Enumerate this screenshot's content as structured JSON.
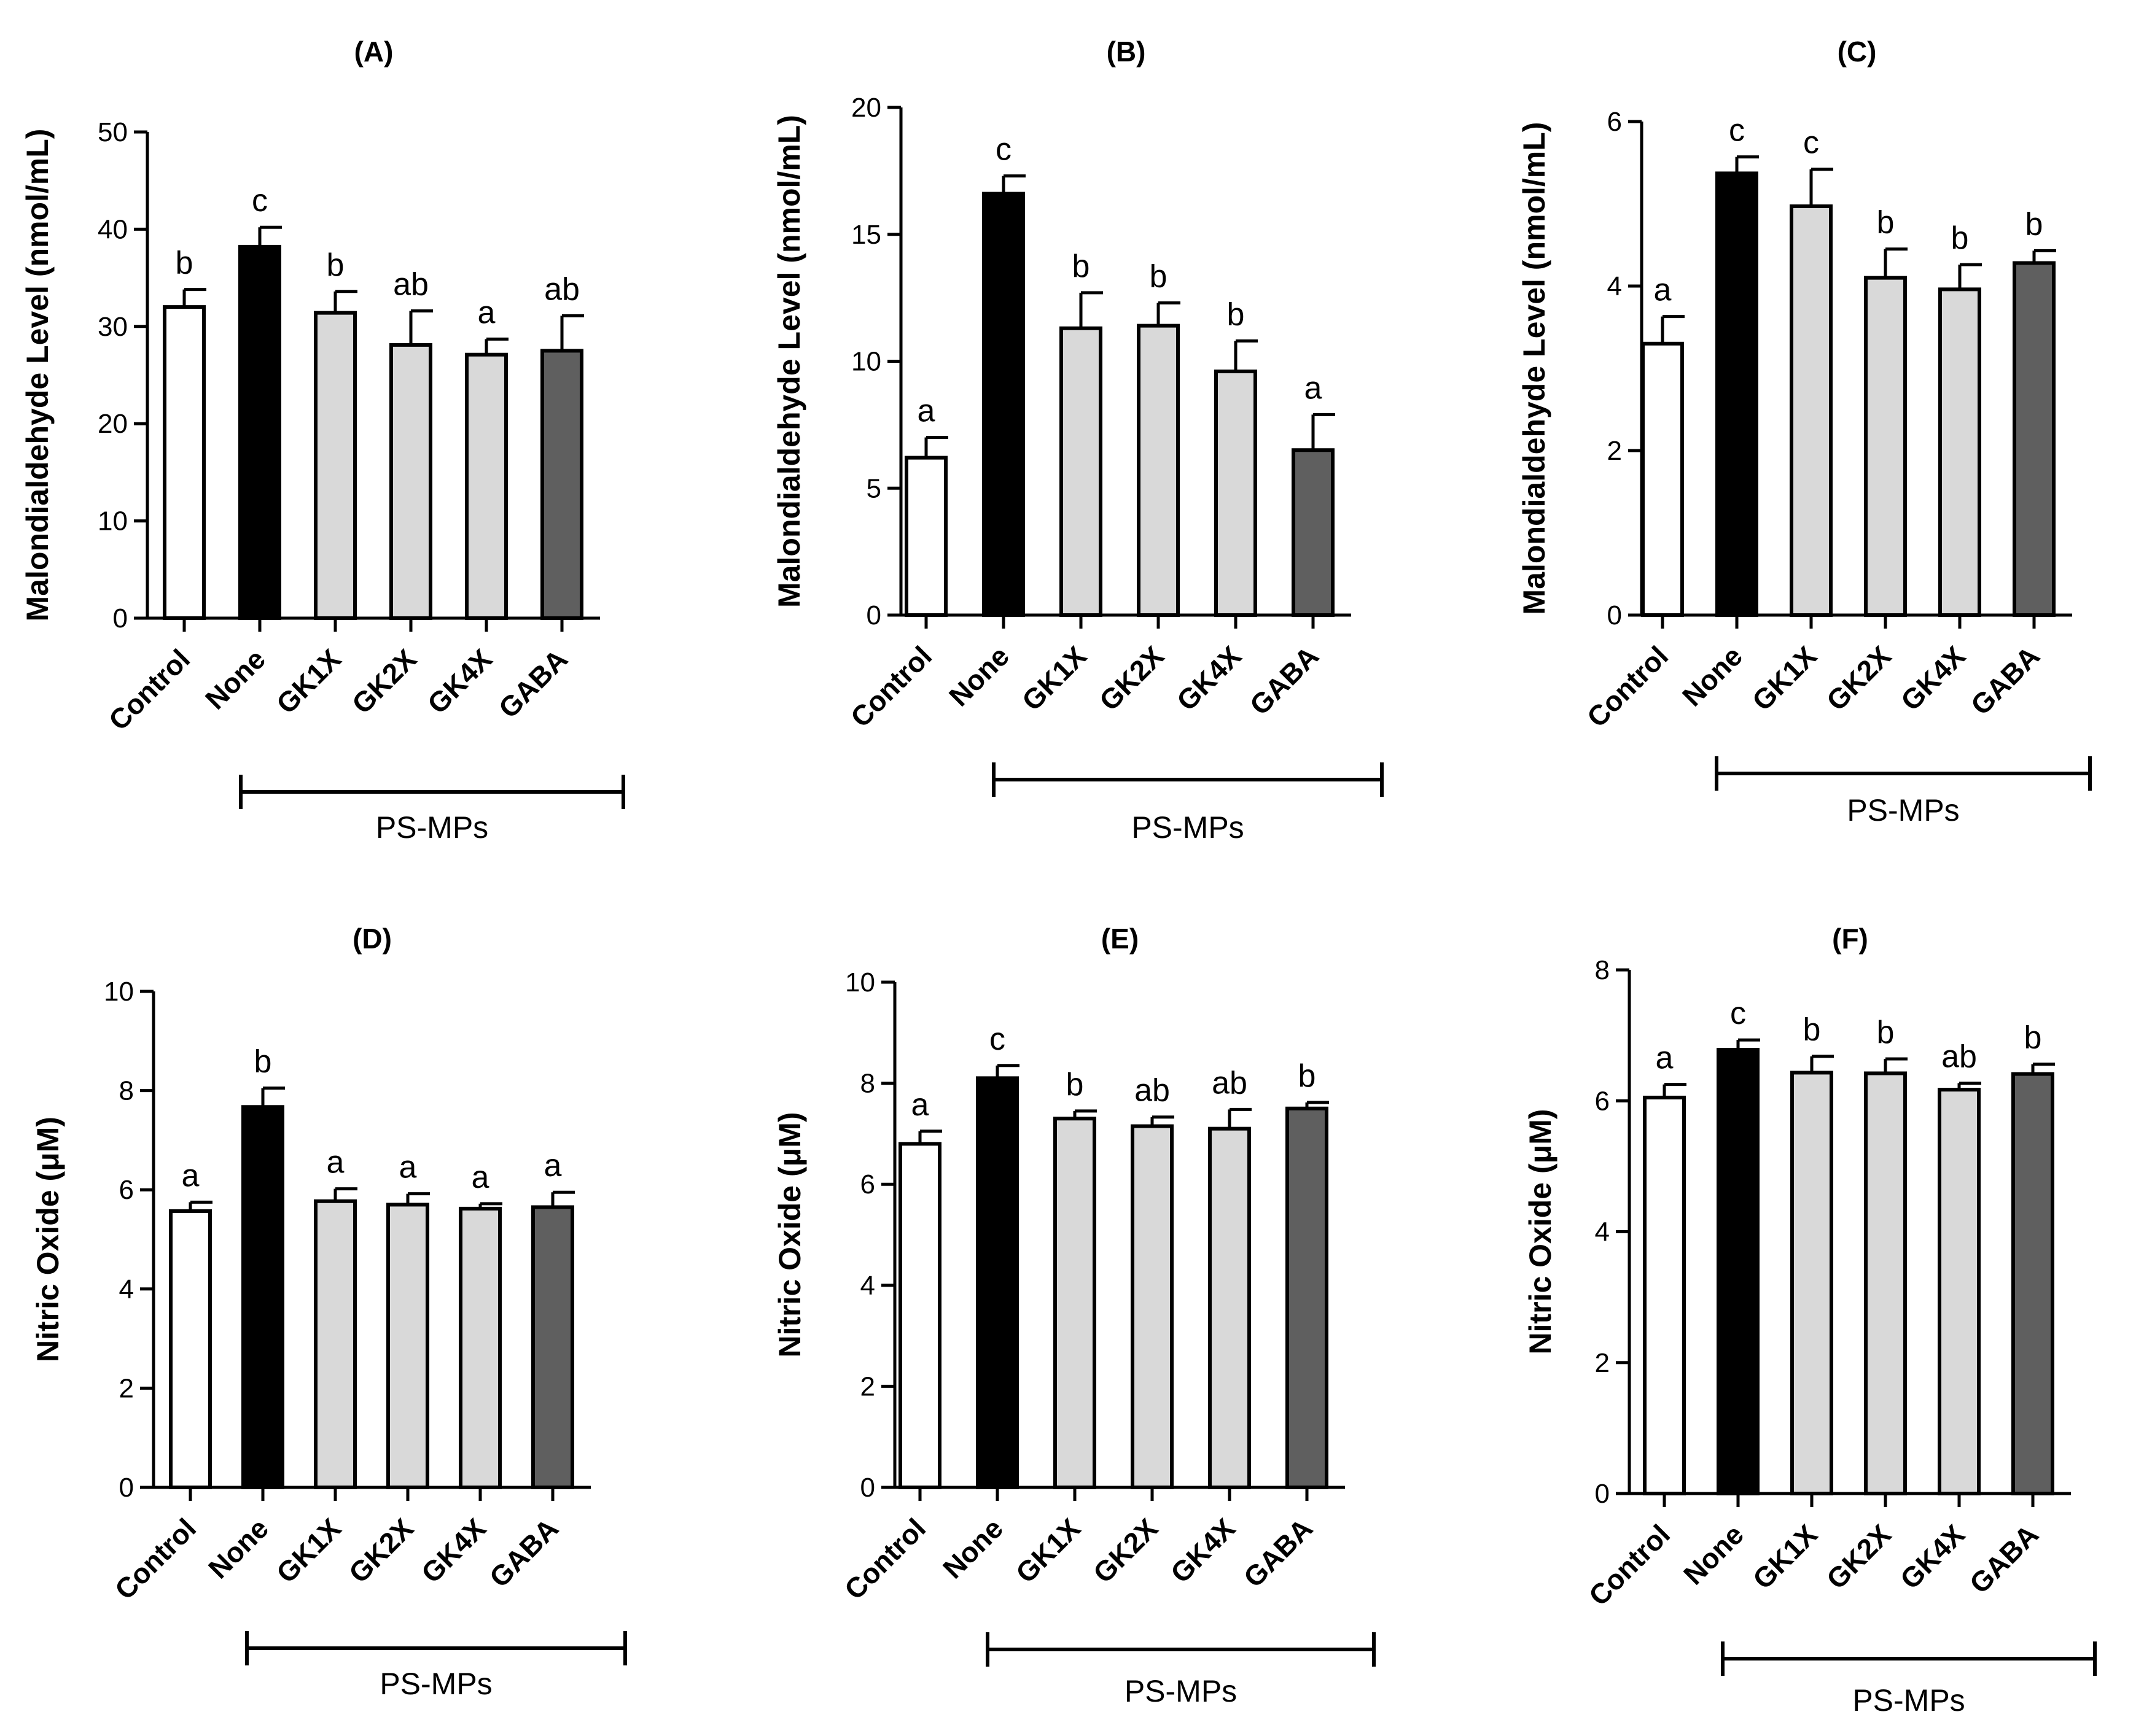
{
  "chart_data": [
    {
      "type": "bar",
      "title": "(A)",
      "ylabel": "Malondialdehyde Level (nmol/mL)",
      "ylim": [
        0,
        50
      ],
      "yticks": [
        0,
        10,
        20,
        30,
        40,
        50
      ],
      "categories": [
        "Control",
        "None",
        "GK1X",
        "GK2X",
        "GK4X",
        "GABA"
      ],
      "values": [
        32,
        38.2,
        31.4,
        28.1,
        27.1,
        27.5
      ],
      "errors": [
        1.8,
        2.0,
        2.2,
        3.5,
        1.6,
        3.6
      ],
      "letters": [
        "b",
        "c",
        "b",
        "ab",
        "a",
        "ab"
      ],
      "fill_colors": [
        "#ffffff",
        "#000000",
        "#d9d9d9",
        "#d9d9d9",
        "#d9d9d9",
        "#5f5f5f"
      ],
      "group_label": "PS-MPs"
    },
    {
      "type": "bar",
      "title": "(B)",
      "ylabel": "Malondialdehyde Level (nmol/mL)",
      "ylim": [
        0,
        20
      ],
      "yticks": [
        0,
        5,
        10,
        15,
        20
      ],
      "categories": [
        "Control",
        "None",
        "GK1X",
        "GK2X",
        "GK4X",
        "GABA"
      ],
      "values": [
        6.2,
        16.6,
        11.3,
        11.4,
        9.6,
        6.5
      ],
      "errors": [
        0.8,
        0.7,
        1.4,
        0.9,
        1.2,
        1.4
      ],
      "letters": [
        "a",
        "c",
        "b",
        "b",
        "b",
        "a"
      ],
      "fill_colors": [
        "#ffffff",
        "#000000",
        "#d9d9d9",
        "#d9d9d9",
        "#d9d9d9",
        "#5f5f5f"
      ],
      "group_label": "PS-MPs"
    },
    {
      "type": "bar",
      "title": "(C)",
      "ylabel": "Malondialdehyde Level (nmol/mL)",
      "ylim": [
        0,
        6
      ],
      "yticks": [
        0,
        2,
        4,
        6
      ],
      "categories": [
        "Control",
        "None",
        "GK1X",
        "GK2X",
        "GK4X",
        "GABA"
      ],
      "values": [
        3.3,
        5.37,
        4.97,
        4.1,
        3.96,
        4.28
      ],
      "errors": [
        0.33,
        0.2,
        0.45,
        0.35,
        0.3,
        0.15
      ],
      "letters": [
        "a",
        "c",
        "c",
        "b",
        "b",
        "b"
      ],
      "fill_colors": [
        "#ffffff",
        "#000000",
        "#d9d9d9",
        "#d9d9d9",
        "#d9d9d9",
        "#5f5f5f"
      ],
      "group_label": "PS-MPs"
    },
    {
      "type": "bar",
      "title": "(D)",
      "ylabel": "Nitric Oxide (μM)",
      "ylim": [
        0,
        10
      ],
      "yticks": [
        0,
        2,
        4,
        6,
        8,
        10
      ],
      "categories": [
        "Control",
        "None",
        "GK1X",
        "GK2X",
        "GK4X",
        "GABA"
      ],
      "values": [
        5.57,
        7.67,
        5.77,
        5.7,
        5.62,
        5.65
      ],
      "errors": [
        0.18,
        0.38,
        0.25,
        0.22,
        0.1,
        0.3
      ],
      "letters": [
        "a",
        "b",
        "a",
        "a",
        "a",
        "a"
      ],
      "fill_colors": [
        "#ffffff",
        "#000000",
        "#d9d9d9",
        "#d9d9d9",
        "#d9d9d9",
        "#5f5f5f"
      ],
      "group_label": "PS-MPs"
    },
    {
      "type": "bar",
      "title": "(E)",
      "ylabel": "Nitric Oxide (μM)",
      "ylim": [
        0,
        10
      ],
      "yticks": [
        0,
        2,
        4,
        6,
        8,
        10
      ],
      "categories": [
        "Control",
        "None",
        "GK1X",
        "GK2X",
        "GK4X",
        "GABA"
      ],
      "values": [
        6.8,
        8.1,
        7.3,
        7.15,
        7.1,
        7.5
      ],
      "errors": [
        0.25,
        0.25,
        0.15,
        0.18,
        0.38,
        0.12
      ],
      "letters": [
        "a",
        "c",
        "b",
        "ab",
        "ab",
        "b"
      ],
      "fill_colors": [
        "#ffffff",
        "#000000",
        "#d9d9d9",
        "#d9d9d9",
        "#d9d9d9",
        "#5f5f5f"
      ],
      "group_label": "PS-MPs"
    },
    {
      "type": "bar",
      "title": "(F)",
      "ylabel": "Nitric Oxide (μM)",
      "ylim": [
        0,
        8
      ],
      "yticks": [
        0,
        2,
        4,
        6,
        8
      ],
      "categories": [
        "Control",
        "None",
        "GK1X",
        "GK2X",
        "GK4X",
        "GABA"
      ],
      "values": [
        6.05,
        6.78,
        6.43,
        6.42,
        6.17,
        6.41
      ],
      "errors": [
        0.2,
        0.15,
        0.25,
        0.22,
        0.1,
        0.15
      ],
      "letters": [
        "a",
        "c",
        "b",
        "b",
        "ab",
        "b"
      ],
      "fill_colors": [
        "#ffffff",
        "#000000",
        "#d9d9d9",
        "#d9d9d9",
        "#d9d9d9",
        "#5f5f5f"
      ],
      "group_label": "PS-MPs"
    }
  ]
}
